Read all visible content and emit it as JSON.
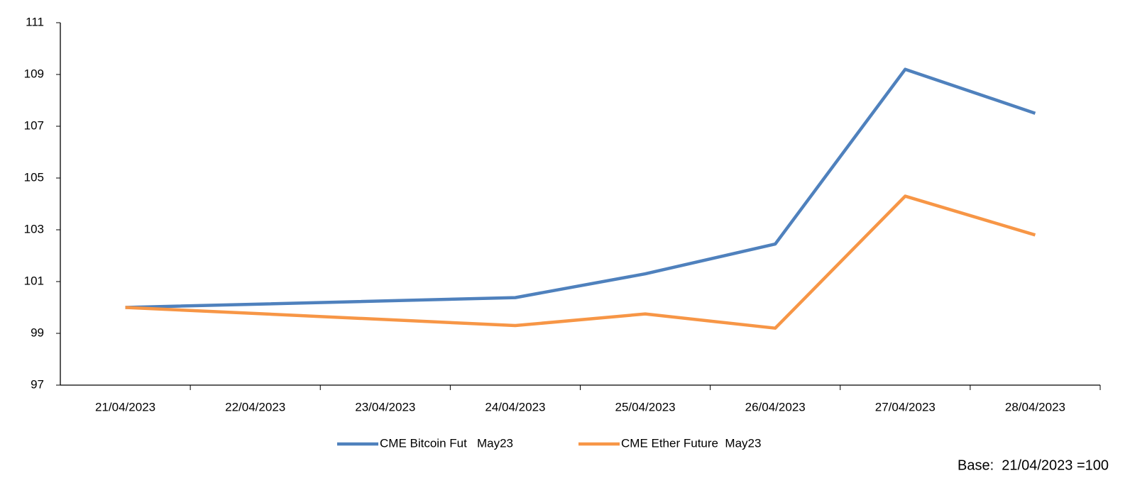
{
  "chart_data": {
    "type": "line",
    "xticks": [
      "21/04/2023",
      "22/04/2023",
      "23/04/2023",
      "24/04/2023",
      "25/04/2023",
      "26/04/2023",
      "27/04/2023",
      "28/04/2023"
    ],
    "x": [
      "21/04/2023",
      "24/04/2023",
      "25/04/2023",
      "26/04/2023",
      "27/04/2023",
      "28/04/2023"
    ],
    "series": [
      {
        "name": "CME Bitcoin Fut   May23",
        "color": "#4f81bd",
        "values": [
          100,
          100.38,
          101.3,
          102.45,
          109.2,
          107.5
        ]
      },
      {
        "name": "CME Ether Future  May23",
        "color": "#f79646",
        "values": [
          100,
          99.3,
          99.75,
          99.2,
          104.3,
          102.8
        ]
      }
    ],
    "ylim": [
      97,
      111
    ],
    "yticks": [
      97,
      99,
      101,
      103,
      105,
      107,
      109,
      111
    ],
    "grid": false,
    "legend": "bottom",
    "note": "Base:  21/04/2023 =100"
  }
}
